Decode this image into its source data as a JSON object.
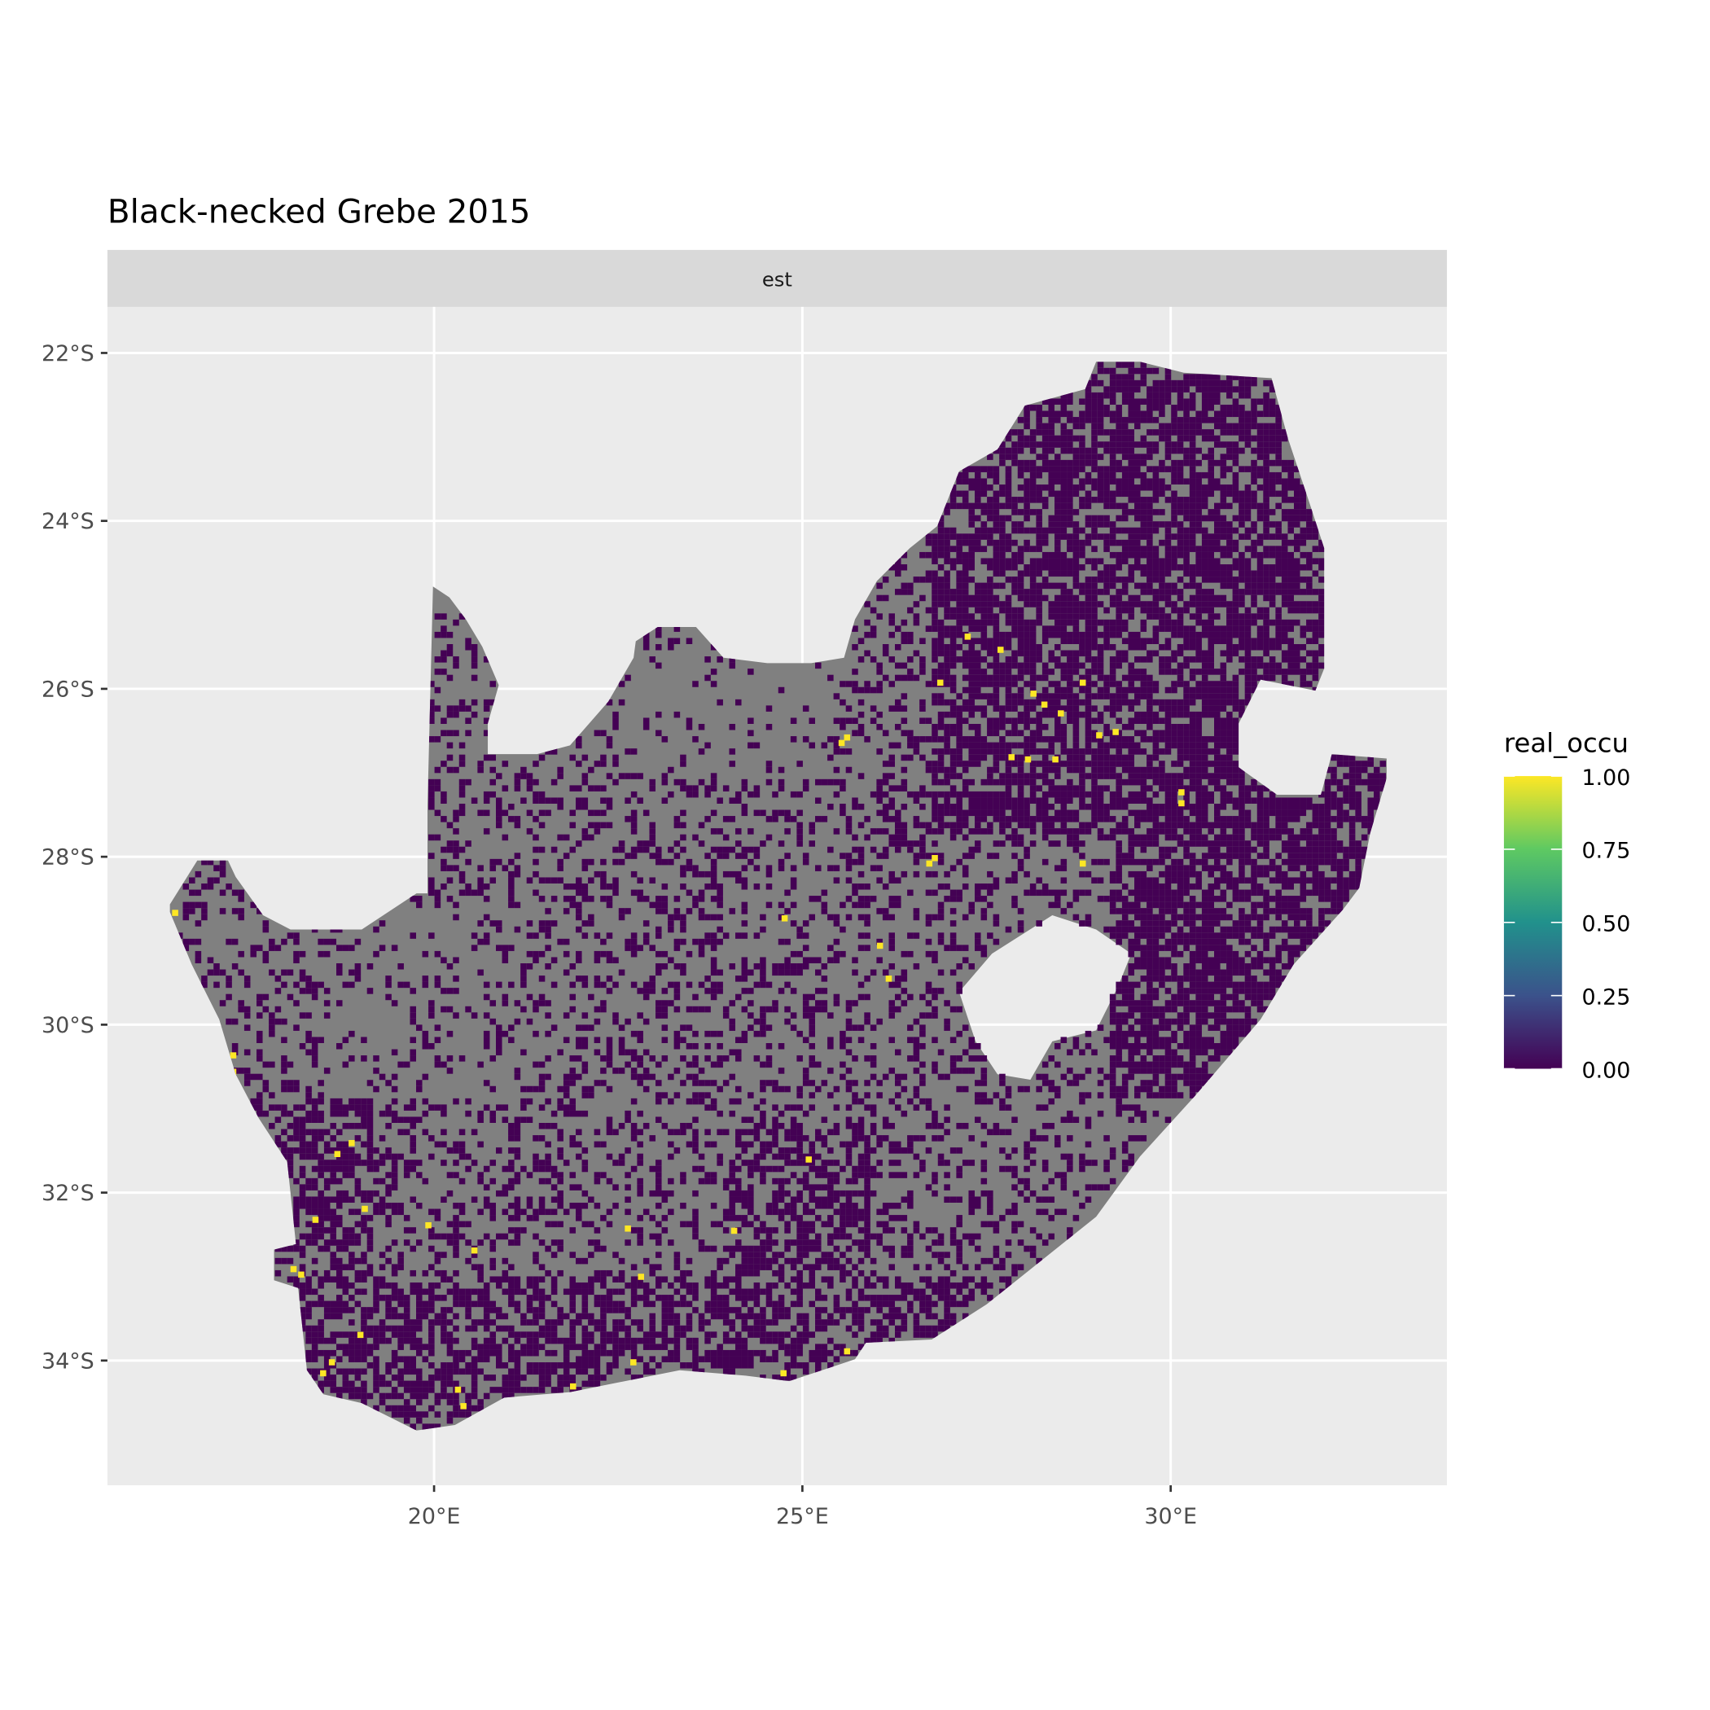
{
  "chart_data": {
    "type": "heatmap",
    "title": "Black-necked Grebe 2015",
    "facet_label": "est",
    "xlabel": "",
    "ylabel": "",
    "x_ticks": [
      "20°E",
      "25°E",
      "30°E"
    ],
    "x_tick_values": [
      20,
      25,
      30
    ],
    "y_ticks": [
      "22°S",
      "24°S",
      "26°S",
      "28°S",
      "30°S",
      "32°S",
      "34°S"
    ],
    "y_tick_values": [
      -22,
      -24,
      -26,
      -28,
      -30,
      -32,
      -34
    ],
    "xlim": [
      15.6,
      33.8
    ],
    "ylim": [
      -35.4,
      -21.45
    ],
    "grid": true,
    "legend": {
      "title": "real_occu",
      "position": "right",
      "ticks": [
        "1.00",
        "0.75",
        "0.50",
        "0.25",
        "0.00"
      ],
      "tick_values": [
        1,
        0.75,
        0.5,
        0.25,
        0
      ],
      "palette": [
        "#440154",
        "#3b528b",
        "#21918c",
        "#5ec962",
        "#fde725"
      ]
    },
    "na_color": "#808080",
    "low_color": "#440154",
    "high_color": "#fde725",
    "description_values": "Grid cells over South Africa: most cells NA (grey) or ~0 (purple); scattered cells near 1.0 (yellow), concentrated in Western Cape and Gauteng/Mpumalanga highveld"
  }
}
